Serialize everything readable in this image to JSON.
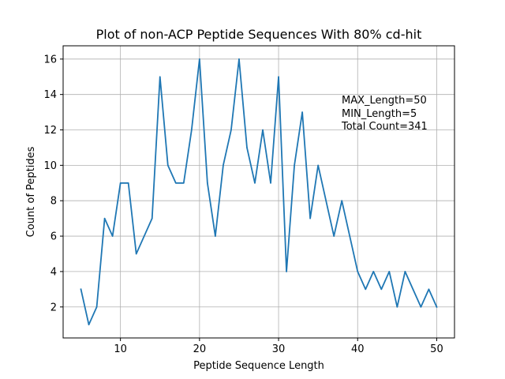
{
  "chart_data": {
    "type": "line",
    "title": "Plot of non-ACP Peptide Sequences With 80% cd-hit",
    "xlabel": "Peptide Sequence Length",
    "ylabel": "Count of Peptides",
    "xlim": [
      2.75,
      52.25
    ],
    "ylim": [
      0.25,
      16.75
    ],
    "xticks": [
      10,
      20,
      30,
      40,
      50
    ],
    "yticks": [
      2,
      4,
      6,
      8,
      10,
      12,
      14,
      16
    ],
    "grid": true,
    "line_color": "#1f77b4",
    "series": [
      {
        "x": [
          5,
          6,
          7,
          8,
          9,
          10,
          11,
          12,
          13,
          14,
          15,
          16,
          17,
          18,
          19,
          20,
          21,
          22,
          23,
          24,
          25,
          26,
          27,
          28,
          29,
          30,
          31,
          32,
          33,
          34,
          35,
          36,
          37,
          38,
          39,
          40,
          41,
          42,
          43,
          44,
          45,
          46,
          47,
          48,
          49,
          50
        ],
        "values": [
          3,
          1,
          2,
          7,
          6,
          9,
          9,
          5,
          6,
          7,
          15,
          10,
          9,
          9,
          12,
          16,
          9,
          6,
          10,
          12,
          16,
          11,
          9,
          12,
          9,
          15,
          4,
          10,
          13,
          7,
          10,
          8,
          6,
          8,
          6,
          4,
          3,
          4,
          3,
          4,
          2,
          4,
          3,
          2,
          3,
          2
        ]
      }
    ],
    "annotations": [
      "MAX_Length=50",
      "MIN_Length=5",
      "Total Count=341"
    ]
  }
}
